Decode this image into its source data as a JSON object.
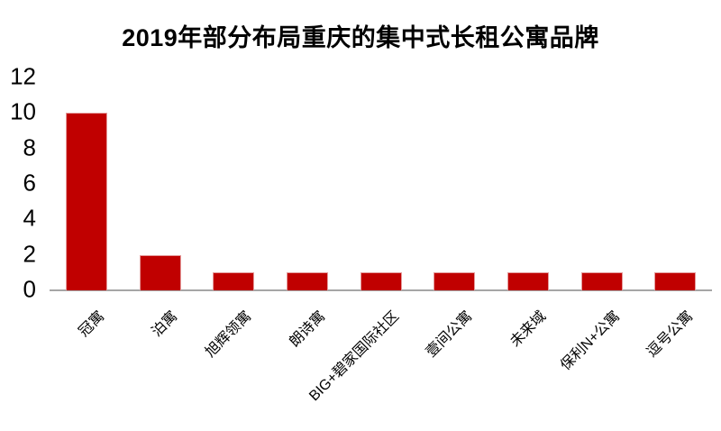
{
  "chart_data": {
    "type": "bar",
    "title": "2019年部分布局重庆的集中式长租公寓品牌",
    "categories": [
      "冠寓",
      "泊寓",
      "旭辉领寓",
      "朗诗寓",
      "BIG+碧家国际社区",
      "壹间公寓",
      "未来域",
      "保利N+公寓",
      "逗号公寓"
    ],
    "values": [
      10,
      2,
      1,
      1,
      1,
      1,
      1,
      1,
      1
    ],
    "xlabel": "",
    "ylabel": "",
    "ylim": [
      0,
      12
    ],
    "yticks": [
      0,
      2,
      4,
      6,
      8,
      10,
      12
    ],
    "grid": false,
    "legend": false,
    "colors": {
      "bar": "#C00000",
      "bar_border": "#E49B9B",
      "axis_line": "#A6A6A6",
      "text": "#000000",
      "background": "#FFFFFF"
    }
  }
}
